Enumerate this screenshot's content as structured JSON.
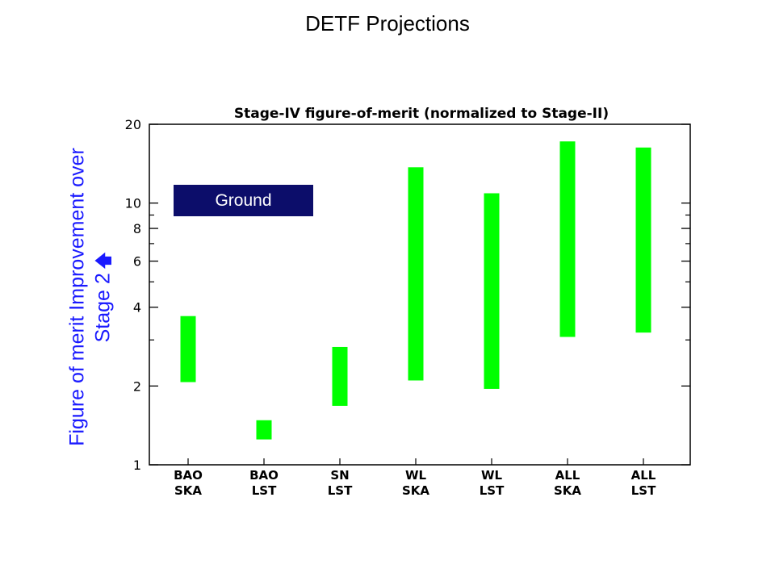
{
  "slide": {
    "title": "DETF Projections",
    "ylabel_line1": "Figure of merit Improvement over",
    "ylabel_line2": "Stage 2",
    "ylabel_icon": "up-arrow-icon",
    "badge": "Ground"
  },
  "chart_data": {
    "type": "bar",
    "title": "Stage-IV figure-of-merit (normalized to Stage-II)",
    "categories": [
      [
        "BAO",
        "SKA"
      ],
      [
        "BAO",
        "LST"
      ],
      [
        "SN",
        "LST"
      ],
      [
        "WL",
        "SKA"
      ],
      [
        "WL",
        "LST"
      ],
      [
        "ALL",
        "SKA"
      ],
      [
        "ALL",
        "LST"
      ]
    ],
    "ranges": [
      [
        2.07,
        3.7
      ],
      [
        1.25,
        1.48
      ],
      [
        1.68,
        2.82
      ],
      [
        2.1,
        13.7
      ],
      [
        1.95,
        10.9
      ],
      [
        3.08,
        17.2
      ],
      [
        3.2,
        16.3
      ]
    ],
    "yscale": "log",
    "ylim": [
      1,
      20
    ],
    "yticks": [
      1,
      2,
      4,
      6,
      8,
      10,
      20
    ],
    "bar_color": "#00ff00",
    "grid": false
  }
}
